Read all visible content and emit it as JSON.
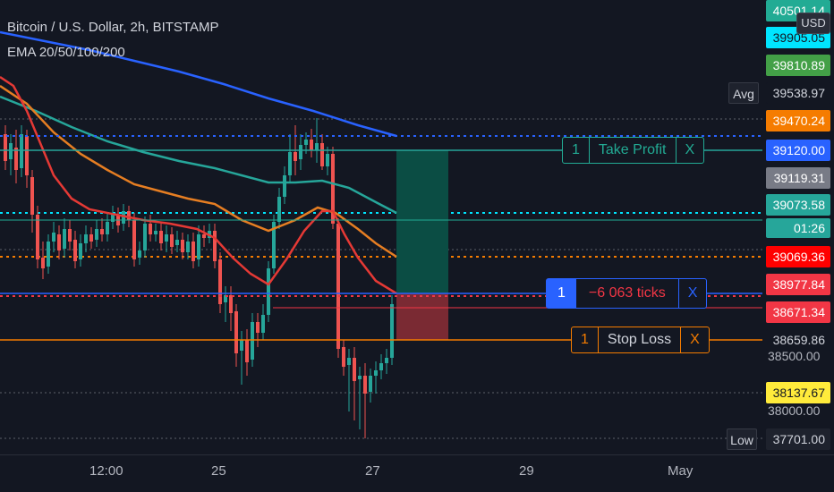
{
  "legend": {
    "symbol": "Bitcoin / U.S. Dollar, 2h, BITSTAMP",
    "indicator": "EMA 20/50/100/200"
  },
  "currency_button": "USD",
  "price_axis": {
    "ticks": [
      "38500.00",
      "38000.00"
    ],
    "labels": [
      {
        "value": "40501.14",
        "bg": "#22ab94",
        "fg": "#ffffff"
      },
      {
        "value": "39905.05",
        "bg": "#00e5ff",
        "fg": "#131722"
      },
      {
        "value": "39810.89",
        "bg": "#43a047",
        "fg": "#ffffff"
      },
      {
        "value": "39538.97",
        "bg": "#131722",
        "fg": "#d1d4dc",
        "tag": "Avg"
      },
      {
        "value": "39470.24",
        "bg": "#f57c00",
        "fg": "#ffffff"
      },
      {
        "value": "39120.00",
        "bg": "#2962ff",
        "fg": "#ffffff"
      },
      {
        "value": "39119.31",
        "bg": "#787b86",
        "fg": "#ffffff"
      },
      {
        "value": "39073.58",
        "bg": "#26a69a",
        "fg": "#ffffff"
      },
      {
        "value": "01:26",
        "bg": "#26a69a",
        "fg": "#ffffff"
      },
      {
        "value": "39069.36",
        "bg": "#ff0000",
        "fg": "#ffffff"
      },
      {
        "value": "38977.84",
        "bg": "#f23645",
        "fg": "#ffffff"
      },
      {
        "value": "38671.34",
        "bg": "#f23645",
        "fg": "#ffffff"
      },
      {
        "value": "38659.86",
        "bg": "#131722",
        "fg": "#d1d4dc"
      },
      {
        "value": "38137.67",
        "bg": "#ffeb3b",
        "fg": "#131722"
      },
      {
        "value": "37701.00",
        "bg": "#1e222d",
        "fg": "#d1d4dc",
        "tag": "Low"
      }
    ]
  },
  "time_axis": [
    "12:00",
    "25",
    "27",
    "29",
    "May"
  ],
  "orders": {
    "take_profit": {
      "qty": "1",
      "label": "Take Profit",
      "close": "X"
    },
    "position": {
      "qty": "1",
      "label": "−6 063 ticks",
      "close": "X"
    },
    "stop_loss": {
      "qty": "1",
      "label": "Stop Loss",
      "close": "X"
    }
  },
  "colors": {
    "background": "#131722",
    "candle_up": "#26a69a",
    "candle_down": "#ef5350",
    "ema20": "#e53935",
    "ema50": "#f57c00",
    "ema100": "#26a69a",
    "ema200": "#2962ff",
    "take_profit_zone": "#0b4d44",
    "stop_loss_zone": "#7a2a33"
  }
}
